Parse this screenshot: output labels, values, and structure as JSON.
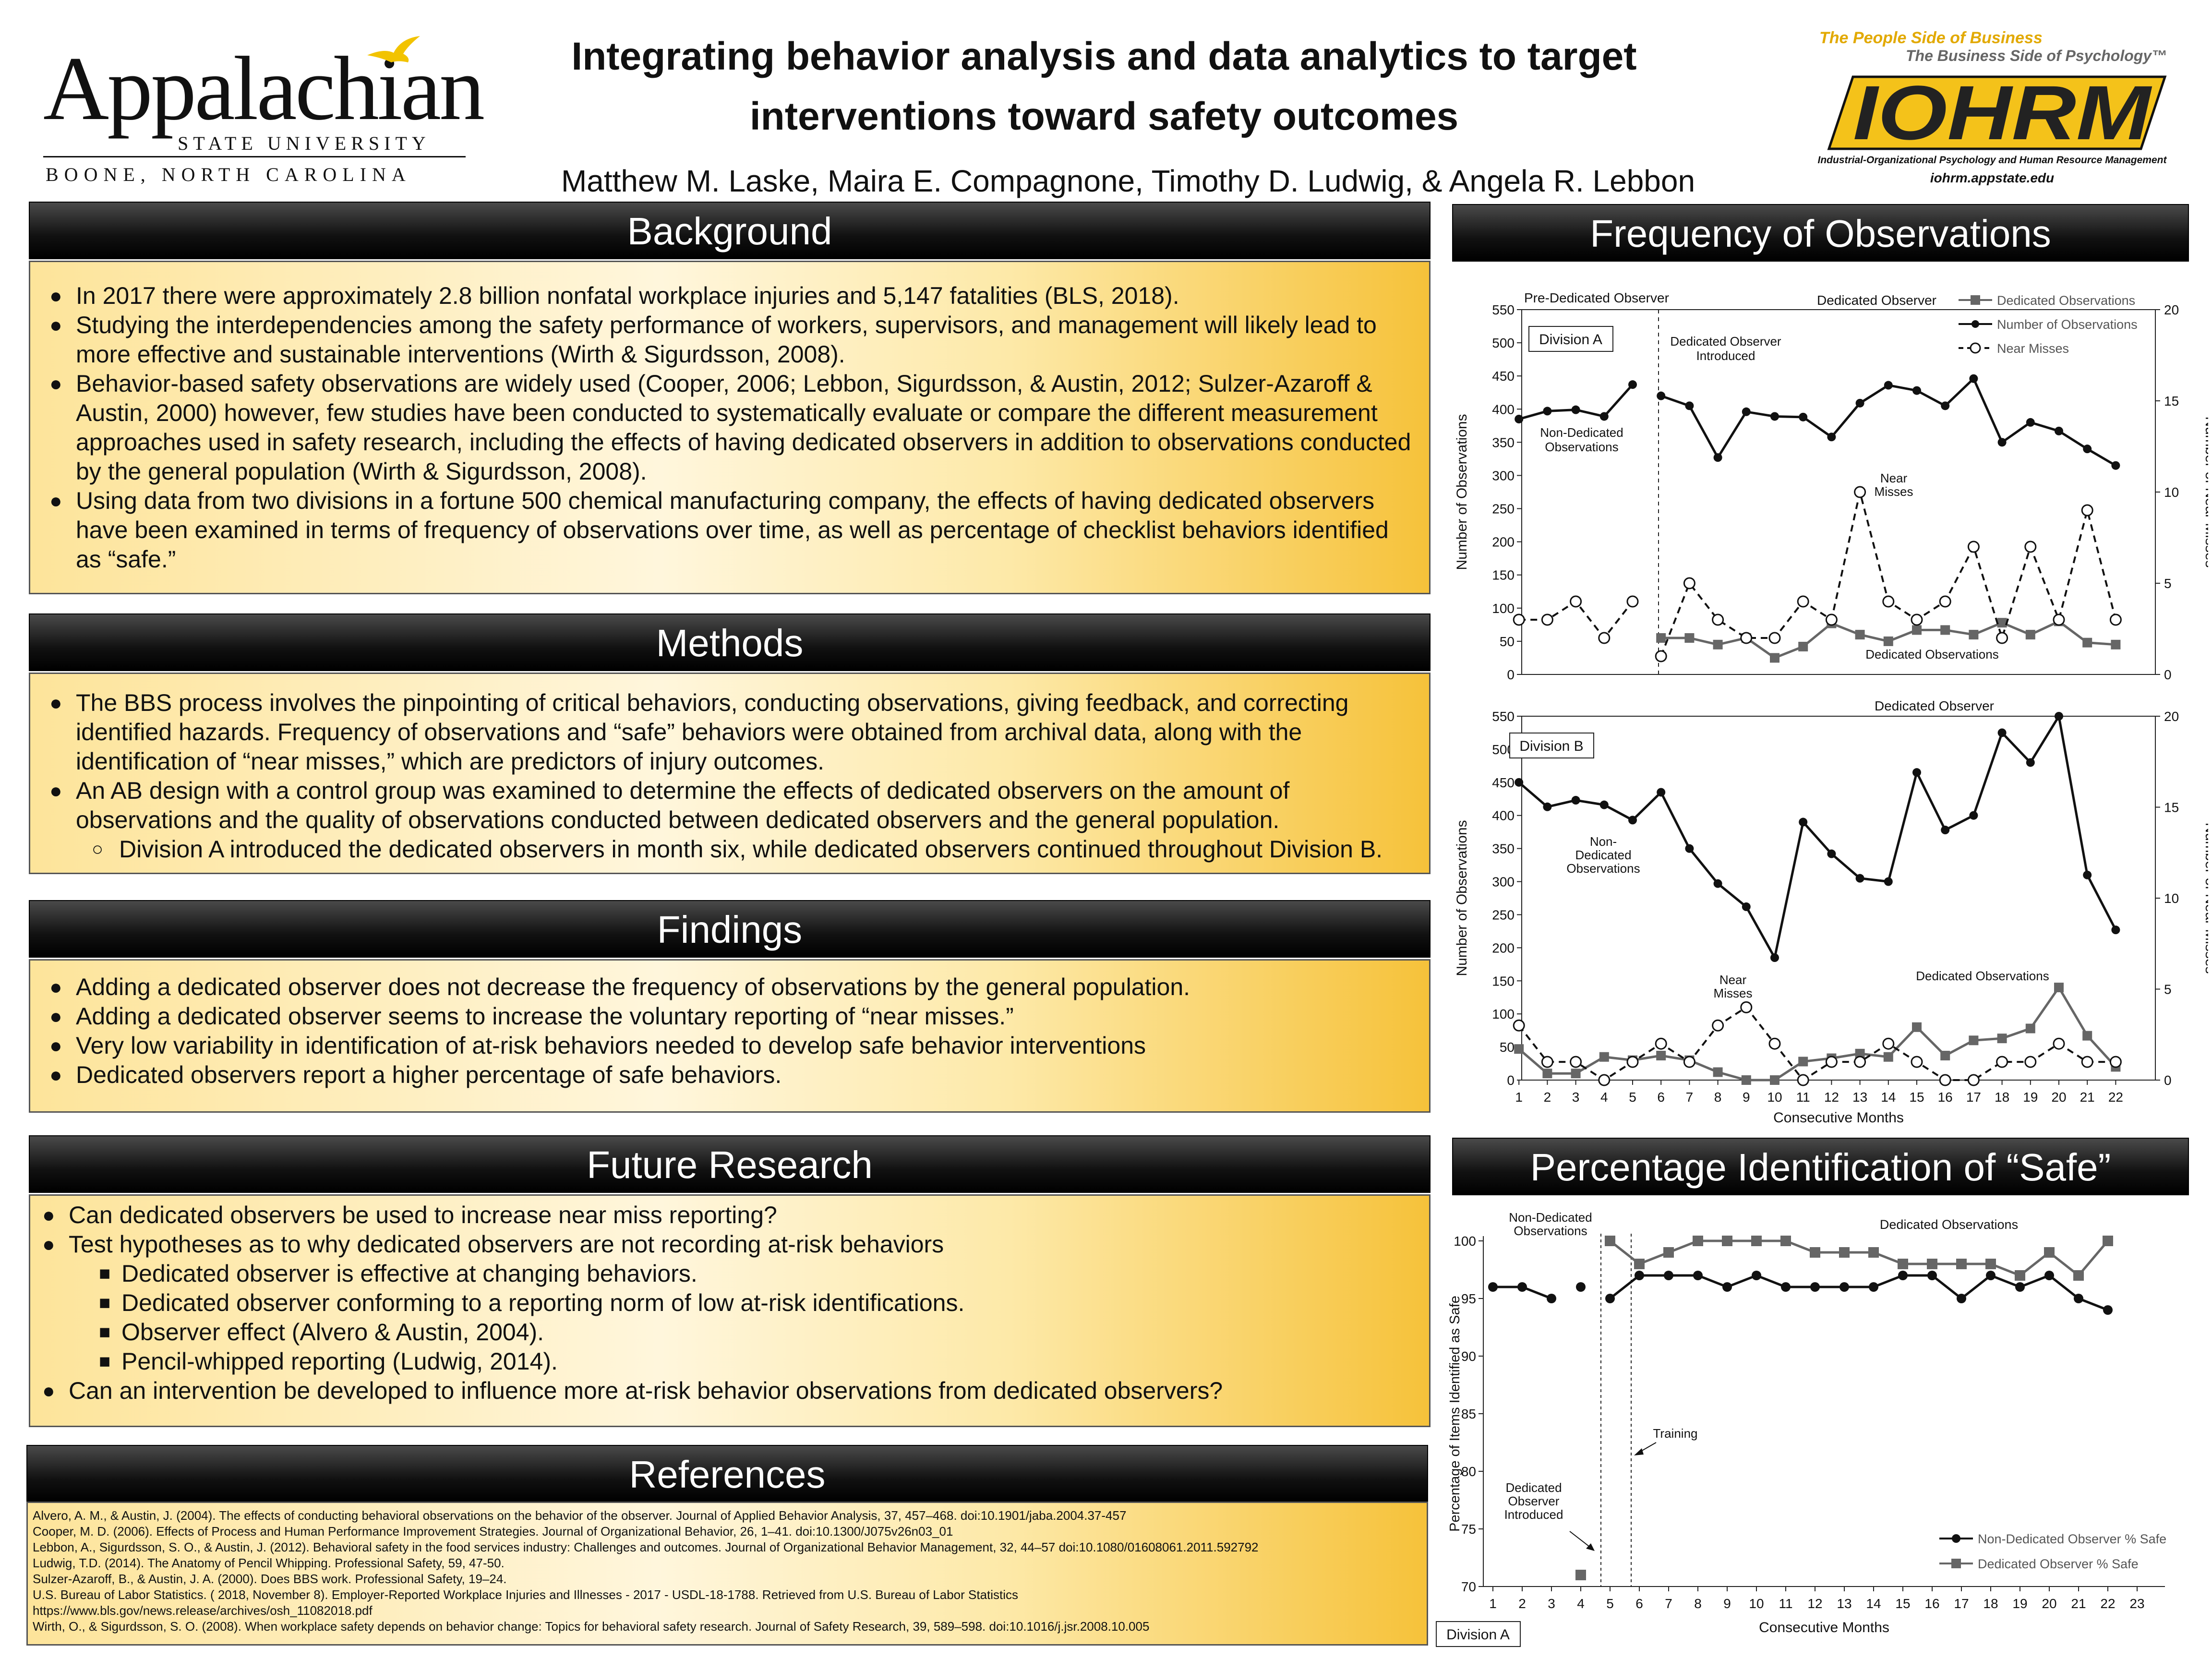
{
  "header": {
    "university_name": "Appalachian",
    "university_state": "STATE UNIVERSITY",
    "university_location": "BOONE, NORTH CAROLINA",
    "title_line1": "Integrating behavior analysis and data analytics to target",
    "title_line2": "interventions toward safety outcomes",
    "authors": "Matthew M. Laske, Maira E. Compagnone, Timothy D. Ludwig, & Angela R. Lebbon",
    "iohrm_tagline1": "The People Side of Business",
    "iohrm_tagline2": "The Business Side of Psychology™",
    "iohrm_logo": "IOHRM",
    "iohrm_subtitle": "Industrial-Organizational Psychology and Human Resource Management",
    "iohrm_url": "iohrm.appstate.edu"
  },
  "sections": {
    "background": {
      "title": "Background",
      "items": [
        "In 2017 there were approximately 2.8 billion nonfatal workplace injuries and 5,147 fatalities (BLS, 2018).",
        "Studying the interdependencies among the safety performance of workers, supervisors, and management will likely lead to more effective and sustainable interventions (Wirth & Sigurdsson, 2008).",
        "Behavior-based safety observations are widely used (Cooper, 2006; Lebbon, Sigurdsson, & Austin, 2012; Sulzer-Azaroff & Austin, 2000) however, few studies have been conducted to systematically evaluate or compare the different measurement approaches used in safety research, including the effects of having dedicated observers in addition to observations conducted by the general population (Wirth & Sigurdsson, 2008).",
        "Using data from two divisions in a  fortune 500 chemical manufacturing company, the effects of having dedicated observers have been examined in terms of frequency of observations over time, as well as percentage of checklist behaviors identified as “safe.”"
      ]
    },
    "methods": {
      "title": "Methods",
      "items": [
        "The BBS process involves the pinpointing of critical behaviors, conducting observations, giving feedback, and correcting identified hazards. Frequency of observations and “safe” behaviors were obtained from archival data, along with the identification of “near misses,” which are predictors of injury outcomes.",
        "An AB design with a control group was examined to determine the effects of dedicated observers on the amount of observations and the quality of observations conducted between dedicated observers and the general population."
      ],
      "subitems": [
        "Division A introduced the dedicated observers in month six, while dedicated observers continued throughout Division B."
      ]
    },
    "findings": {
      "title": "Findings",
      "items": [
        "Adding a dedicated observer does not decrease the frequency of observations by the general population.",
        "Adding a dedicated observer seems to increase the voluntary reporting of “near misses.”",
        "Very low variability in identification of at-risk behaviors needed to develop safe behavior interventions",
        "Dedicated observers report a higher percentage of safe behaviors."
      ]
    },
    "future": {
      "title": "Future Research",
      "item1": "Can dedicated observers be used to increase near miss reporting?",
      "item2": "Test hypotheses as to why dedicated observers are not recording at-risk behaviors",
      "subitems": [
        "Dedicated observer is effective at changing behaviors.",
        "Dedicated observer conforming to a reporting norm of low at-risk identifications.",
        "Observer effect (Alvero & Austin, 2004).",
        "Pencil-whipped reporting (Ludwig, 2014)."
      ],
      "item3": "Can an intervention be developed to influence more at-risk behavior observations from dedicated observers?"
    },
    "references": {
      "title": "References",
      "items": [
        "Alvero, A. M., & Austin, J. (2004). The effects of conducting behavioral observations on the behavior of the observer. Journal of Applied Behavior Analysis, 37, 457–468. doi:10.1901/jaba.2004.37-457",
        "Cooper, M. D. (2006). Effects of Process and Human Performance Improvement Strategies. Journal of Organizational Behavior, 26, 1–41. doi:10.1300/J075v26n03_01",
        "Lebbon, A., Sigurdsson, S. O., & Austin, J. (2012). Behavioral safety in the food services industry: Challenges and outcomes. Journal of Organizational Behavior Management, 32, 44–57 doi:10.1080/01608061.2011.592792",
        "Ludwig, T.D. (2014). The Anatomy of Pencil Whipping. Professional Safety, 59, 47-50.",
        "Sulzer-Azaroff, B., & Austin, J. A. (2000). Does BBS work. Professional Safety, 19–24.",
        "U.S. Bureau of Labor Statistics. ( 2018, November 8). Employer-Reported Workplace Injuries and Illnesses - 2017 - USDL-18-1788. Retrieved from U.S. Bureau of Labor Statistics",
        "https://www.bls.gov/news.release/archives/osh_11082018.pdf",
        "Wirth, O., & Sigurdsson, S. O. (2008). When workplace safety depends on behavior change: Topics for behavioral safety research. Journal of Safety Research, 39, 589–598. doi:10.1016/j.jsr.2008.10.005"
      ]
    },
    "freq_title": "Frequency of Observations",
    "safe_title": "Percentage Identification of “Safe”"
  },
  "chart_data": [
    {
      "type": "line",
      "panel": "Division A",
      "x": [
        1,
        2,
        3,
        4,
        5,
        6,
        7,
        8,
        9,
        10,
        11,
        12,
        13,
        14,
        15,
        16,
        17,
        18,
        19,
        20,
        21,
        22
      ],
      "ylabel": "Number of Observations",
      "y2label": "Number of Near Misses",
      "ylim": [
        0,
        550
      ],
      "y2lim": [
        0,
        20
      ],
      "legend": [
        "Dedicated Observations",
        "Number of Observations",
        "Near Misses"
      ],
      "series": [
        {
          "name": "Number of Observations",
          "axis": "left",
          "segments": [
            [
              1,
              385
            ],
            [
              2,
              397
            ],
            [
              3,
              399
            ],
            [
              4,
              389
            ],
            [
              5,
              437
            ],
            null,
            [
              6,
              420
            ],
            [
              7,
              405
            ],
            [
              8,
              327
            ],
            [
              9,
              396
            ],
            [
              10,
              389
            ],
            [
              11,
              388
            ],
            [
              12,
              358
            ],
            [
              13,
              409
            ],
            [
              14,
              436
            ],
            [
              15,
              428
            ],
            [
              16,
              405
            ],
            [
              17,
              446
            ],
            [
              18,
              350
            ],
            [
              19,
              380
            ],
            [
              20,
              367
            ],
            [
              21,
              340
            ],
            [
              22,
              315
            ]
          ]
        },
        {
          "name": "Dedicated Observations",
          "axis": "left",
          "points": [
            [
              6,
              55
            ],
            [
              7,
              55
            ],
            [
              8,
              45
            ],
            [
              9,
              55
            ],
            [
              10,
              25
            ],
            [
              11,
              42
            ],
            [
              12,
              77
            ],
            [
              13,
              60
            ],
            [
              14,
              50
            ],
            [
              15,
              67
            ],
            [
              16,
              67
            ],
            [
              17,
              60
            ],
            [
              18,
              78
            ],
            [
              19,
              60
            ],
            [
              20,
              80
            ],
            [
              21,
              48
            ],
            [
              22,
              45
            ]
          ]
        },
        {
          "name": "Near Misses",
          "axis": "right",
          "segments": [
            [
              1,
              3
            ],
            [
              2,
              3
            ],
            [
              3,
              4
            ],
            [
              4,
              2
            ],
            [
              5,
              4
            ],
            null,
            [
              6,
              1
            ],
            [
              7,
              5
            ],
            [
              8,
              3
            ],
            [
              9,
              2
            ],
            [
              10,
              2
            ],
            [
              11,
              4
            ],
            [
              12,
              3
            ],
            [
              13,
              10
            ],
            [
              14,
              4
            ],
            [
              15,
              3
            ],
            [
              16,
              4
            ],
            [
              17,
              7
            ],
            [
              18,
              2
            ],
            [
              19,
              7
            ],
            [
              20,
              3
            ],
            [
              21,
              9
            ],
            [
              22,
              3
            ]
          ]
        }
      ],
      "annotations": [
        "Pre-Dedicated Observer",
        "Dedicated Observer",
        "Dedicated Observer",
        "Introduced",
        "Non-Dedicated",
        "Observations",
        "Near",
        "Misses",
        "Dedicated Observations"
      ]
    },
    {
      "type": "line",
      "panel": "Division B",
      "x": [
        1,
        2,
        3,
        4,
        5,
        6,
        7,
        8,
        9,
        10,
        11,
        12,
        13,
        14,
        15,
        16,
        17,
        18,
        19,
        20,
        21,
        22
      ],
      "xlabel": "Consecutive Months",
      "ylabel": "Number of Observations",
      "y2label": "Number of Near Misses",
      "ylim": [
        0,
        550
      ],
      "y2lim": [
        0,
        20
      ],
      "series": [
        {
          "name": "Number of Observations",
          "axis": "left",
          "values": [
            450,
            413,
            423,
            416,
            393,
            435,
            350,
            297,
            262,
            185,
            390,
            342,
            305,
            300,
            465,
            378,
            400,
            525,
            480,
            550,
            310,
            227
          ]
        },
        {
          "name": "Dedicated Observations",
          "axis": "left",
          "values": [
            47,
            10,
            10,
            35,
            30,
            37,
            30,
            12,
            0,
            0,
            28,
            33,
            40,
            35,
            80,
            37,
            60,
            63,
            78,
            140,
            67,
            20
          ]
        },
        {
          "name": "Near Misses",
          "axis": "right",
          "values": [
            3,
            1,
            1,
            0,
            1,
            2,
            1,
            3,
            4,
            2,
            0,
            1,
            1,
            2,
            1,
            0,
            0,
            1,
            1,
            2,
            1,
            1
          ]
        }
      ],
      "annotations": [
        "Dedicated Observer",
        "Non-",
        "Dedicated",
        "Observations",
        "Near",
        "Misses",
        "Dedicated Observations"
      ]
    },
    {
      "type": "line",
      "panel": "Division A",
      "x": [
        1,
        2,
        3,
        4,
        5,
        6,
        7,
        8,
        9,
        10,
        11,
        12,
        13,
        14,
        15,
        16,
        17,
        18,
        19,
        20,
        21,
        22,
        23
      ],
      "xlabel": "Consecutive Months",
      "ylabel": "Percentage of Items Identified as Safe",
      "ylim": [
        70,
        100
      ],
      "legend": [
        "Non-Dedicated Observer % Safe",
        "Dedicated Observer % Safe"
      ],
      "series": [
        {
          "name": "Non-Dedicated Observer % Safe",
          "segments": [
            [
              1,
              96
            ],
            [
              2,
              96
            ],
            [
              3,
              95
            ],
            null,
            [
              4,
              96
            ],
            null,
            [
              5,
              95
            ],
            [
              6,
              97
            ],
            [
              7,
              97
            ],
            [
              8,
              97
            ],
            [
              9,
              96
            ],
            [
              10,
              97
            ],
            [
              11,
              96
            ],
            [
              12,
              96
            ],
            [
              13,
              96
            ],
            [
              14,
              96
            ],
            [
              15,
              97
            ],
            [
              16,
              97
            ],
            [
              17,
              95
            ],
            [
              18,
              97
            ],
            [
              19,
              96
            ],
            [
              20,
              97
            ],
            [
              21,
              95
            ],
            [
              22,
              94
            ]
          ]
        },
        {
          "name": "Dedicated Observer % Safe",
          "segments": [
            [
              4,
              71
            ],
            null,
            [
              5,
              100
            ],
            [
              6,
              98
            ],
            [
              7,
              99
            ],
            [
              8,
              100
            ],
            [
              9,
              100
            ],
            [
              10,
              100
            ],
            [
              11,
              100
            ],
            [
              12,
              99
            ],
            [
              13,
              99
            ],
            [
              14,
              99
            ],
            [
              15,
              98
            ],
            [
              16,
              98
            ],
            [
              17,
              98
            ],
            [
              18,
              98
            ],
            [
              19,
              97
            ],
            [
              20,
              99
            ],
            [
              21,
              97
            ],
            [
              22,
              100
            ]
          ]
        }
      ],
      "annotations": [
        "Non-Dedicated",
        "Observations",
        "Dedicated Observations",
        "Training",
        "Dedicated",
        "Observer",
        "Introduced"
      ]
    }
  ]
}
